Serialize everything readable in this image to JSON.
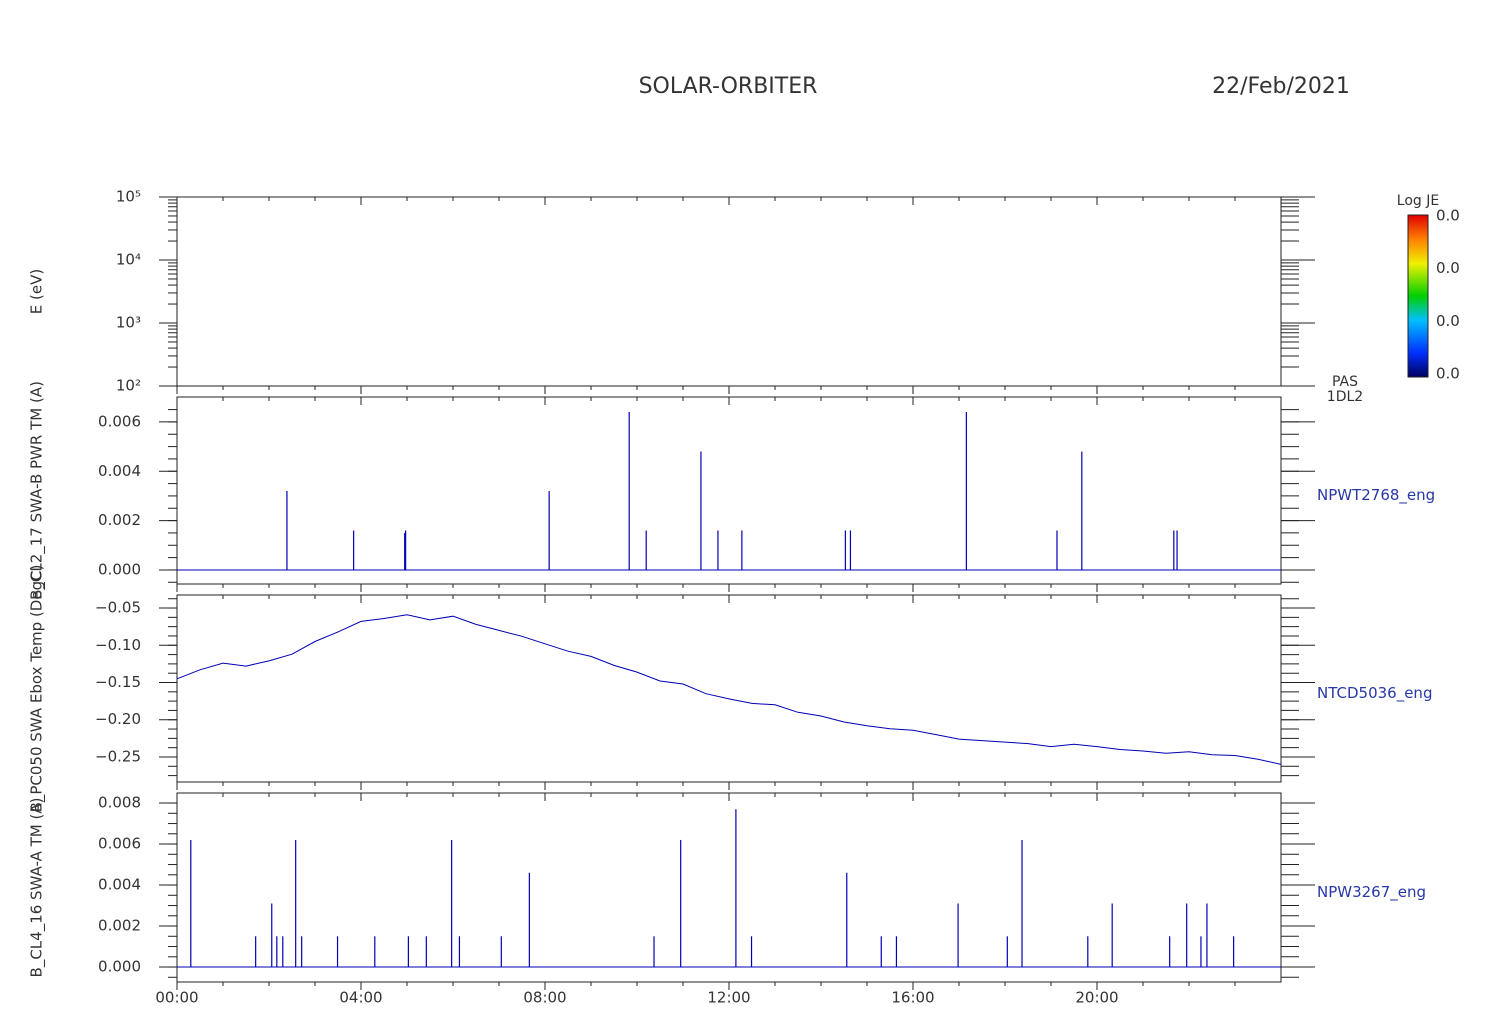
{
  "header": {
    "title": "SOLAR-ORBITER",
    "date": "22/Feb/2021"
  },
  "chart_data": [
    {
      "type": "spectrogram",
      "ylabel": "E (eV)",
      "ylog": true,
      "ylim": [
        100,
        100000
      ],
      "yticks": [
        {
          "value": 100,
          "label": "10²"
        },
        {
          "value": 1000,
          "label": "10³"
        },
        {
          "value": 10000,
          "label": "10⁴"
        },
        {
          "value": 100000,
          "label": "10⁵"
        }
      ],
      "xlim": [
        0,
        24
      ],
      "instrument": [
        "PAS",
        "1DL2"
      ],
      "colorbar": {
        "title": "Log JE",
        "labels": [
          "0.0",
          "0.0",
          "0.0",
          "0.0"
        ]
      }
    },
    {
      "type": "spike",
      "ylabel": "B_CL2_17 SWA-B PWR TM (A)",
      "name": "NPWT2768_eng",
      "color": "#0000b4",
      "xlim": [
        0,
        24
      ],
      "ylim": [
        -0.00057,
        0.00701
      ],
      "yticks": [
        {
          "value": 0,
          "label": "0.000"
        },
        {
          "value": 0.002,
          "label": "0.002"
        },
        {
          "value": 0.004,
          "label": "0.004"
        },
        {
          "value": 0.006,
          "label": "0.006"
        }
      ],
      "x": [
        2.39,
        3.84,
        4.95,
        4.97,
        8.09,
        9.83,
        10.2,
        11.39,
        11.76,
        12.28,
        14.53,
        14.64,
        17.16,
        19.13,
        19.67,
        21.67,
        21.74
      ],
      "values": [
        0.0032,
        0.0016,
        0.0015,
        0.0016,
        0.0032,
        0.0064,
        0.0016,
        0.0048,
        0.0016,
        0.0016,
        0.0016,
        0.0016,
        0.0064,
        0.0016,
        0.0048,
        0.0016,
        0.0016
      ]
    },
    {
      "type": "line",
      "ylabel": "B_PC050 SWA Ebox Temp (DegC)",
      "name": "NTCD5036_eng",
      "color": "#0000b4",
      "xlim": [
        0,
        24
      ],
      "ylim": [
        -0.2836,
        -0.0325
      ],
      "yticks": [
        {
          "value": -0.25,
          "label": "−0.25"
        },
        {
          "value": -0.2,
          "label": "−0.20"
        },
        {
          "value": -0.15,
          "label": "−0.15"
        },
        {
          "value": -0.1,
          "label": "−0.10"
        },
        {
          "value": -0.05,
          "label": "−0.05"
        }
      ],
      "x": [
        0,
        0.5,
        1,
        1.5,
        2,
        2.5,
        3,
        3.5,
        4,
        4.5,
        5,
        5.5,
        6,
        6.5,
        7,
        7.5,
        8,
        8.5,
        9,
        9.5,
        10,
        10.5,
        11,
        11.5,
        12,
        12.5,
        13,
        13.5,
        14,
        14.5,
        15,
        15.5,
        16,
        16.5,
        17,
        17.5,
        18,
        18.5,
        19,
        19.5,
        20,
        20.5,
        21,
        21.5,
        22,
        22.5,
        23,
        23.5,
        24
      ],
      "values": [
        -0.145,
        -0.133,
        -0.124,
        -0.128,
        -0.121,
        -0.112,
        -0.095,
        -0.082,
        -0.068,
        -0.064,
        -0.059,
        -0.066,
        -0.061,
        -0.072,
        -0.08,
        -0.088,
        -0.098,
        -0.108,
        -0.115,
        -0.127,
        -0.136,
        -0.148,
        -0.152,
        -0.165,
        -0.172,
        -0.178,
        -0.18,
        -0.19,
        -0.195,
        -0.203,
        -0.208,
        -0.212,
        -0.214,
        -0.22,
        -0.226,
        -0.228,
        -0.23,
        -0.232,
        -0.236,
        -0.233,
        -0.236,
        -0.24,
        -0.242,
        -0.245,
        -0.243,
        -0.247,
        -0.248,
        -0.253,
        -0.26
      ]
    },
    {
      "type": "spike",
      "ylabel": "B_CL4_16 SWA-A TM (A)",
      "name": "NPW3267_eng",
      "color": "#0000b4",
      "xlim": [
        0,
        24
      ],
      "ylim": [
        -0.00073,
        0.00849
      ],
      "yticks": [
        {
          "value": 0,
          "label": "0.000"
        },
        {
          "value": 0.002,
          "label": "0.002"
        },
        {
          "value": 0.004,
          "label": "0.004"
        },
        {
          "value": 0.006,
          "label": "0.006"
        },
        {
          "value": 0.008,
          "label": "0.008"
        }
      ],
      "xticks": [
        {
          "value": 0,
          "label": "00:00"
        },
        {
          "value": 4,
          "label": "04:00"
        },
        {
          "value": 8,
          "label": "08:00"
        },
        {
          "value": 12,
          "label": "12:00"
        },
        {
          "value": 16,
          "label": "16:00"
        },
        {
          "value": 20,
          "label": "20:00"
        }
      ],
      "x": [
        0.3,
        1.71,
        2.06,
        2.17,
        2.3,
        2.58,
        2.71,
        3.49,
        4.3,
        5.03,
        5.42,
        5.97,
        6.14,
        7.05,
        7.66,
        10.37,
        10.95,
        12.15,
        12.49,
        14.56,
        15.31,
        15.64,
        16.98,
        18.05,
        18.37,
        19.8,
        20.33,
        21.58,
        21.95,
        22.26,
        22.39,
        22.97
      ],
      "values": [
        0.0062,
        0.0015,
        0.0031,
        0.0015,
        0.0015,
        0.0062,
        0.0015,
        0.0015,
        0.0015,
        0.0015,
        0.0015,
        0.0062,
        0.0015,
        0.0015,
        0.0046,
        0.0015,
        0.0062,
        0.0077,
        0.0015,
        0.0046,
        0.0015,
        0.0015,
        0.0031,
        0.0015,
        0.0062,
        0.0015,
        0.0031,
        0.0015,
        0.0031,
        0.0015,
        0.0031,
        0.0015
      ]
    }
  ]
}
